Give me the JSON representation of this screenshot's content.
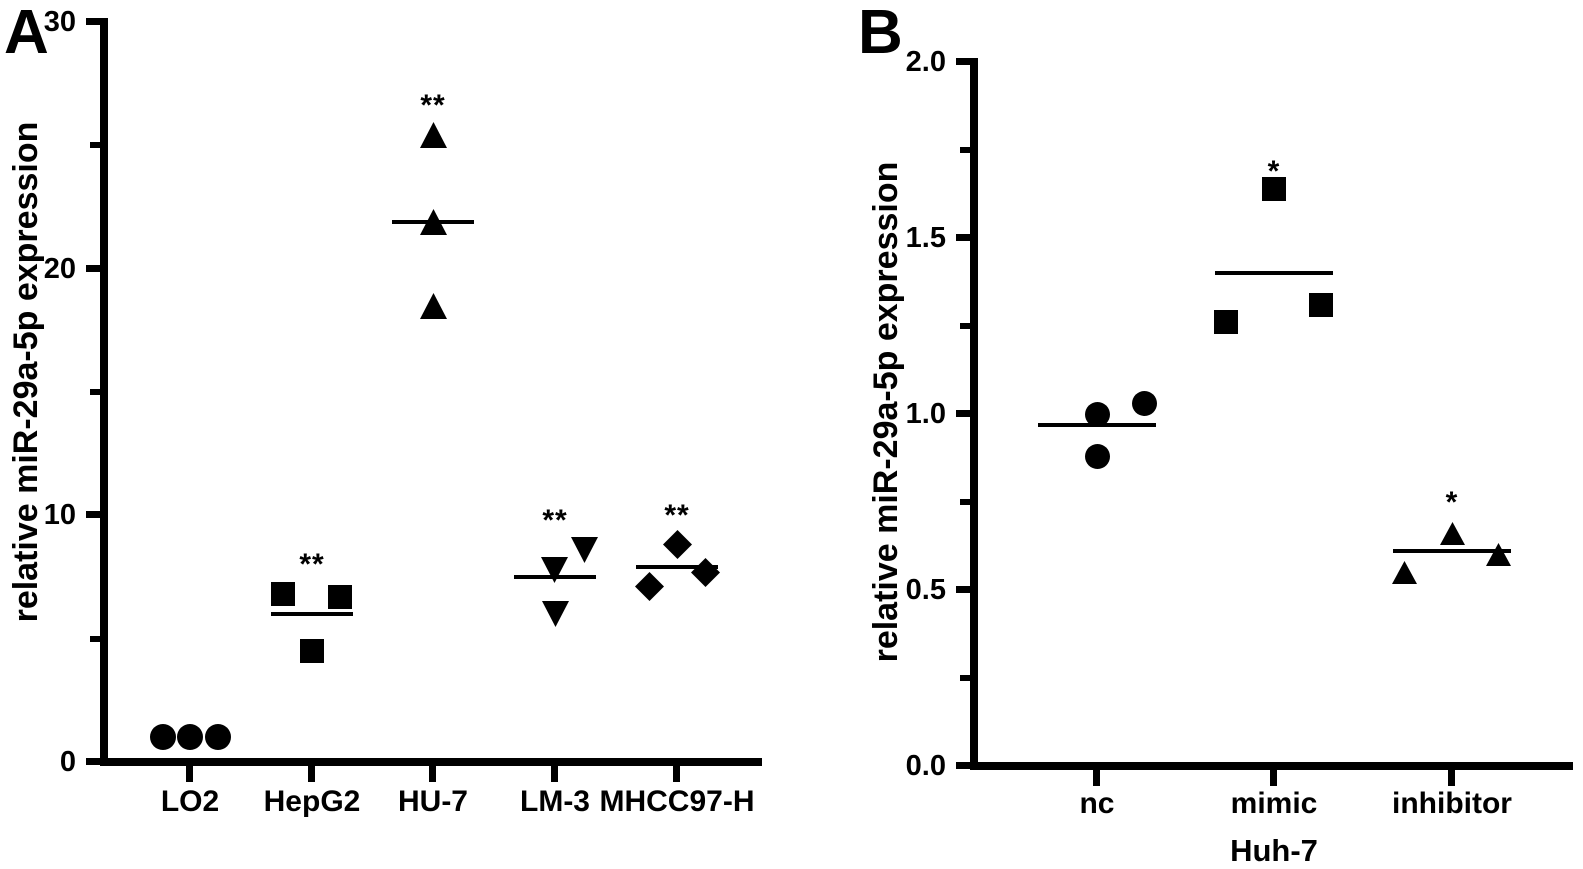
{
  "chart_data": [
    {
      "type": "scatter",
      "panel": "A",
      "ylabel": "relative miR-29a-5p expression",
      "xlabel": "",
      "ylim": [
        0,
        30
      ],
      "ytick_values": [
        0,
        10,
        20,
        30
      ],
      "ytick_labels": [
        "0",
        "10",
        "20",
        "30"
      ],
      "ytick_minor_values": [
        5,
        15,
        25
      ],
      "grid": false,
      "legend": "none",
      "marker_color": "#000000",
      "categories": [
        "LO2",
        "HepG2",
        "HU-7",
        "LM-3",
        "MHCC97-H"
      ],
      "groups": [
        {
          "label": "LO2",
          "marker": "circle",
          "points": [
            {
              "value": 1.0,
              "dx": -27
            },
            {
              "value": 1.0,
              "dx": 0
            },
            {
              "value": 1.0,
              "dx": 28
            }
          ],
          "mean": 1.0,
          "mean_line_visible": false,
          "significance": ""
        },
        {
          "label": "HepG2",
          "marker": "square",
          "points": [
            {
              "value": 6.8,
              "dx": -29
            },
            {
              "value": 6.7,
              "dx": 28
            },
            {
              "value": 4.5,
              "dx": 0
            }
          ],
          "mean": 6.0,
          "mean_line_visible": true,
          "significance": "**"
        },
        {
          "label": "HU-7",
          "marker": "triangle-up",
          "points": [
            {
              "value": 25.4,
              "dx": 0
            },
            {
              "value": 21.9,
              "dx": 0
            },
            {
              "value": 18.5,
              "dx": 0
            }
          ],
          "mean": 21.9,
          "mean_line_visible": true,
          "significance": "**"
        },
        {
          "label": "LM-3",
          "marker": "triangle-down",
          "points": [
            {
              "value": 8.6,
              "dx": 29
            },
            {
              "value": 7.8,
              "dx": -1
            },
            {
              "value": 6.0,
              "dx": 0
            }
          ],
          "mean": 7.5,
          "mean_line_visible": true,
          "significance": "**"
        },
        {
          "label": "MHCC97-H",
          "marker": "diamond",
          "points": [
            {
              "value": 8.8,
              "dx": 0
            },
            {
              "value": 7.1,
              "dx": -28
            },
            {
              "value": 7.7,
              "dx": 28
            }
          ],
          "mean": 7.9,
          "mean_line_visible": true,
          "significance": "**"
        }
      ]
    },
    {
      "type": "scatter",
      "panel": "B",
      "ylabel": "relative miR-29a-5p expression",
      "xlabel": "Huh-7",
      "ylim": [
        0,
        2
      ],
      "ytick_values": [
        0,
        0.5,
        1,
        1.5,
        2
      ],
      "ytick_labels": [
        "0.0",
        "0.5",
        "1.0",
        "1.5",
        "2.0"
      ],
      "ytick_minor_values": [
        0.25,
        0.75,
        1.25,
        1.75
      ],
      "grid": false,
      "legend": "none",
      "marker_color": "#000000",
      "categories": [
        "nc",
        "mimic",
        "inhibitor"
      ],
      "groups": [
        {
          "label": "nc",
          "marker": "circle",
          "points": [
            {
              "value": 1.0,
              "dx": 0
            },
            {
              "value": 1.03,
              "dx": 47
            },
            {
              "value": 0.88,
              "dx": 0
            }
          ],
          "mean": 0.97,
          "mean_line_visible": true,
          "significance": ""
        },
        {
          "label": "mimic",
          "marker": "square",
          "points": [
            {
              "value": 1.64,
              "dx": 0
            },
            {
              "value": 1.26,
              "dx": -48
            },
            {
              "value": 1.31,
              "dx": 47
            }
          ],
          "mean": 1.4,
          "mean_line_visible": true,
          "significance": "*"
        },
        {
          "label": "inhibitor",
          "marker": "triangle-up",
          "points": [
            {
              "value": 0.66,
              "dx": 0
            },
            {
              "value": 0.55,
              "dx": -48
            },
            {
              "value": 0.6,
              "dx": 46
            }
          ],
          "mean": 0.61,
          "mean_line_visible": true,
          "significance": "*"
        }
      ]
    }
  ]
}
